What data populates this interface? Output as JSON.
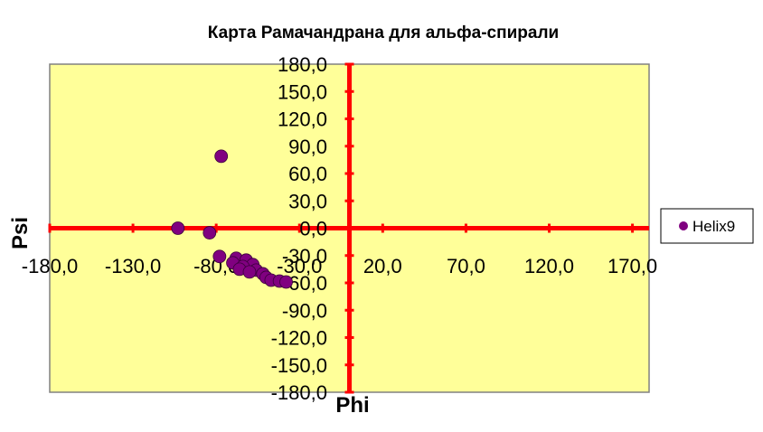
{
  "chart_data": {
    "type": "scatter",
    "title": "Карта Рамачандрана для альфа-спирали",
    "xlabel": "Phi",
    "ylabel": "Psi",
    "xlim": [
      -180,
      180
    ],
    "ylim": [
      -180,
      180
    ],
    "x_ticks": [
      -180,
      -130,
      -80,
      -30,
      20,
      70,
      120,
      170
    ],
    "x_tick_labels": [
      "-180,0",
      "-130,0",
      "-80,0",
      "-30,0",
      "20,0",
      "70,0",
      "120,0",
      "170,0"
    ],
    "y_ticks": [
      180,
      150,
      120,
      90,
      60,
      30,
      0,
      -30,
      -60,
      -90,
      -120,
      -150,
      -180
    ],
    "y_tick_labels": [
      "180,0",
      "150,0",
      "120,0",
      "90,0",
      "60,0",
      "30,0",
      "0,0",
      "-30,0",
      "-60,0",
      "-90,0",
      "-120,0",
      "-150,0",
      "-180,0"
    ],
    "grid": false,
    "legend_position": "right",
    "plot_background": "#ffff99",
    "axis_color": "#ff0000",
    "series": [
      {
        "name": "Helix9",
        "color": "#800080",
        "points": [
          {
            "x": -77,
            "y": 79
          },
          {
            "x": -103,
            "y": 0
          },
          {
            "x": -84,
            "y": -5
          },
          {
            "x": -78,
            "y": -31
          },
          {
            "x": -68,
            "y": -33
          },
          {
            "x": -62,
            "y": -35
          },
          {
            "x": -70,
            "y": -38
          },
          {
            "x": -58,
            "y": -40
          },
          {
            "x": -64,
            "y": -42
          },
          {
            "x": -66,
            "y": -45
          },
          {
            "x": -56,
            "y": -46
          },
          {
            "x": -60,
            "y": -48
          },
          {
            "x": -52,
            "y": -50
          },
          {
            "x": -50,
            "y": -54
          },
          {
            "x": -47,
            "y": -57
          },
          {
            "x": -42,
            "y": -58
          },
          {
            "x": -38,
            "y": -59
          }
        ]
      }
    ]
  }
}
